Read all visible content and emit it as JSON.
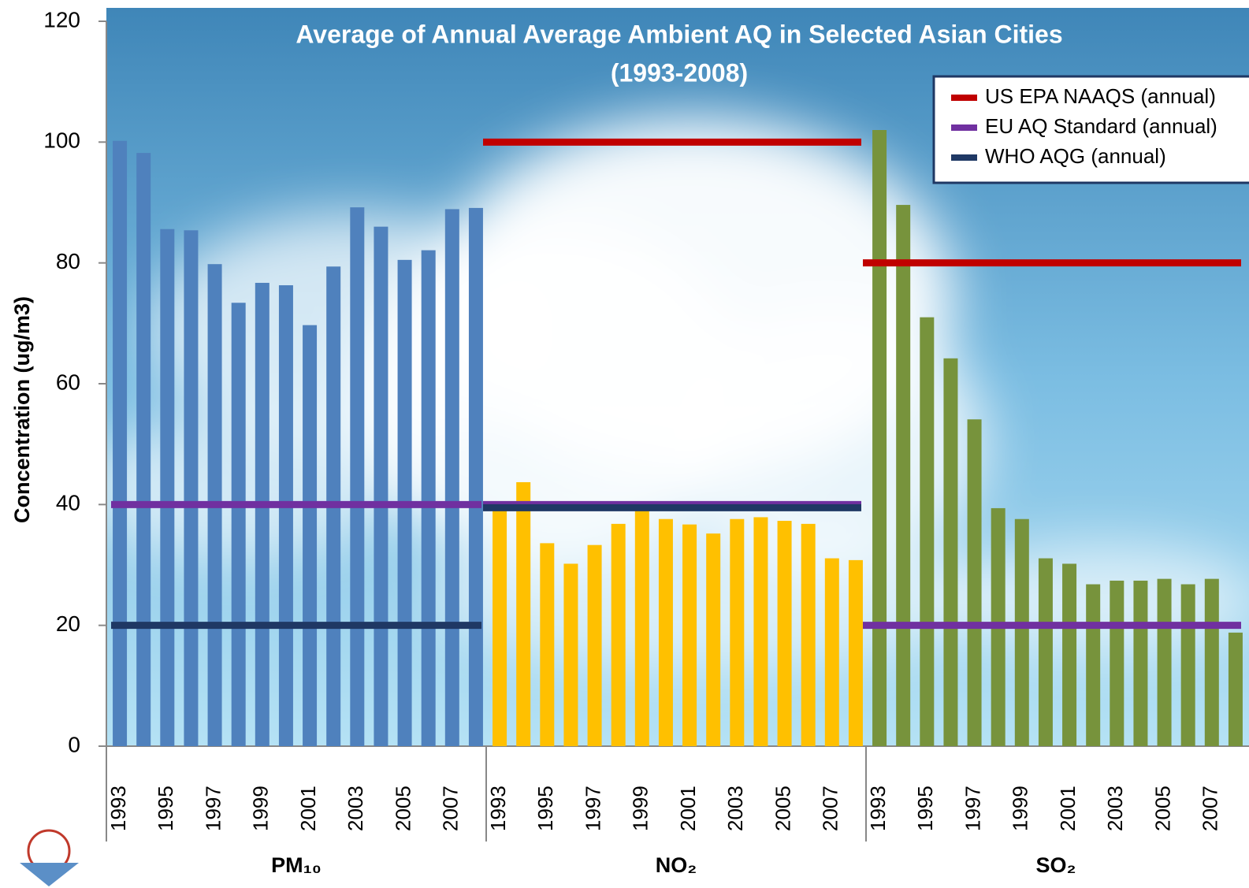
{
  "chart_data": {
    "type": "bar",
    "title": "Average of Annual Average Ambient AQ in Selected Asian Cities",
    "subtitle": "(1993-2008)",
    "y_label": "Concentration (ug/m3)",
    "ylim": [
      0,
      120
    ],
    "yticks": [
      0,
      20,
      40,
      60,
      80,
      100,
      120
    ],
    "grid": false,
    "legend": "top-right",
    "groups": [
      {
        "name": "PM₁₀",
        "color": "#4f81bd",
        "categories": [
          "1993",
          null,
          "1995",
          null,
          "1997",
          null,
          "1999",
          null,
          "2001",
          null,
          "2003",
          null,
          "2005",
          null,
          "2007",
          null
        ],
        "values": [
          100.2,
          98.2,
          85.6,
          85.4,
          79.8,
          73.4,
          76.7,
          76.3,
          69.7,
          79.4,
          89.2,
          86.0,
          80.5,
          82.1,
          88.9,
          89.1
        ]
      },
      {
        "name": "NO₂",
        "color": "#ffc000",
        "categories": [
          "1993",
          null,
          "1995",
          null,
          "1997",
          null,
          "1999",
          null,
          "2001",
          null,
          "2003",
          null,
          "2005",
          null,
          "2007",
          null
        ],
        "values": [
          39.9,
          43.7,
          33.6,
          30.2,
          33.3,
          36.8,
          39.5,
          37.6,
          36.7,
          35.2,
          37.6,
          37.9,
          37.3,
          36.8,
          31.1,
          30.8
        ]
      },
      {
        "name": "SO₂",
        "color": "#77933c",
        "categories": [
          "1993",
          null,
          "1995",
          null,
          "1997",
          null,
          "1999",
          null,
          "2001",
          null,
          "2003",
          null,
          "2005",
          null,
          "2007",
          null
        ],
        "values": [
          102.0,
          89.6,
          71.0,
          64.2,
          54.1,
          39.4,
          37.6,
          31.1,
          30.2,
          26.8,
          27.4,
          27.4,
          27.7,
          26.8,
          27.7,
          18.8
        ]
      }
    ],
    "standards": [
      {
        "name": "US EPA NAAQS (annual)",
        "color": "#c00000",
        "values": [
          null,
          100,
          80
        ]
      },
      {
        "name": "EU AQ Standard (annual)",
        "color": "#7030a0",
        "values": [
          40,
          40,
          20
        ]
      },
      {
        "name": "WHO AQG (annual)",
        "color": "#1f3864",
        "values": [
          20,
          40,
          null
        ]
      }
    ]
  }
}
